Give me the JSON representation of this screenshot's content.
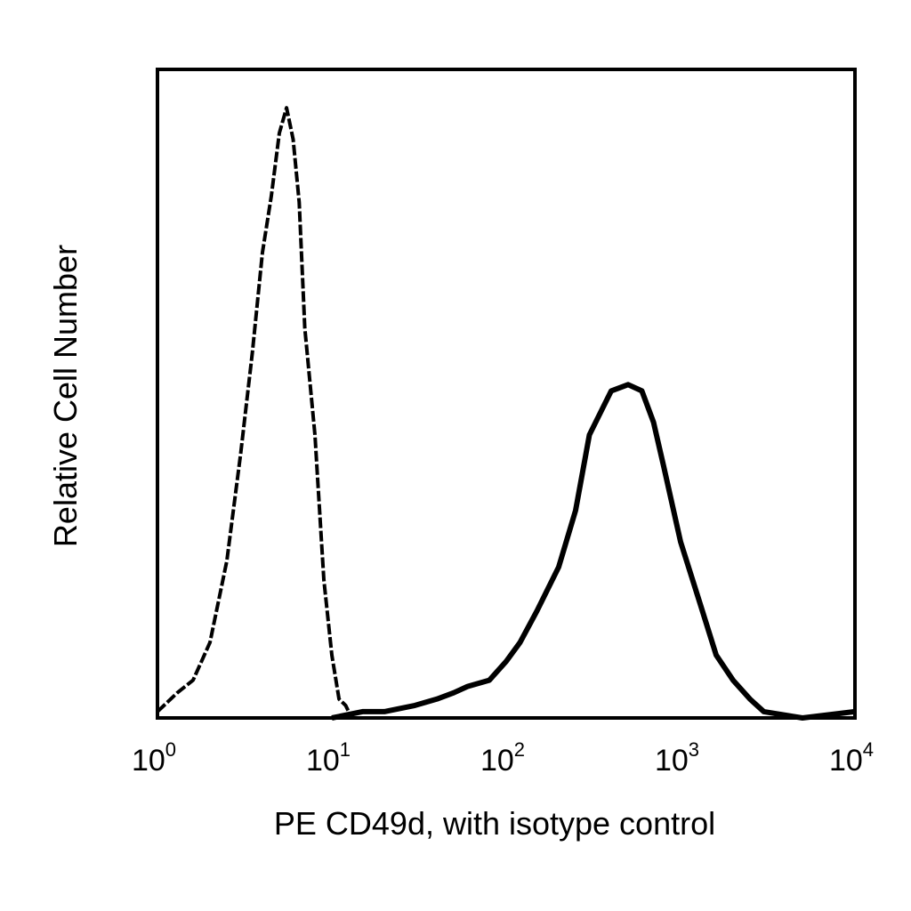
{
  "chart_data": {
    "type": "area",
    "title": "",
    "xlabel": "PE CD49d, with isotype control",
    "ylabel": "Relative Cell Number",
    "x_scale": "log",
    "xlim": [
      1,
      10000
    ],
    "ylim": [
      0,
      1
    ],
    "grid": false,
    "legend": "none",
    "x_ticks": [
      {
        "value": 1,
        "base": "10",
        "exp": "0"
      },
      {
        "value": 10,
        "base": "10",
        "exp": "1"
      },
      {
        "value": 100,
        "base": "10",
        "exp": "2"
      },
      {
        "value": 1000,
        "base": "10",
        "exp": "3"
      },
      {
        "value": 10000,
        "base": "10",
        "exp": "4"
      }
    ],
    "series": [
      {
        "style": "dashed",
        "x": [
          1.0,
          1.3,
          1.6,
          2.0,
          2.5,
          3.0,
          3.5,
          4.0,
          4.5,
          5.0,
          5.5,
          6.0,
          6.5,
          7.0,
          8.0,
          9.0,
          10.0,
          11.0,
          12.0,
          13.0,
          16.0,
          25.0,
          40.0,
          100.0,
          1000.0,
          10000.0
        ],
        "values": [
          0.01,
          0.04,
          0.06,
          0.12,
          0.25,
          0.42,
          0.58,
          0.74,
          0.83,
          0.93,
          0.97,
          0.92,
          0.82,
          0.62,
          0.45,
          0.22,
          0.1,
          0.03,
          0.02,
          0.0,
          0.0,
          0.0,
          0.0,
          0.0,
          0.0,
          0.0
        ]
      },
      {
        "style": "solid",
        "x": [
          10.0,
          15.0,
          20.0,
          30.0,
          40.0,
          50.0,
          60.0,
          80.0,
          100.0,
          120.0,
          150.0,
          200.0,
          250.0,
          300.0,
          400.0,
          500.0,
          600.0,
          700.0,
          800.0,
          1000.0,
          1300.0,
          1600.0,
          2000.0,
          2500.0,
          3000.0,
          5000.0,
          10000.0
        ],
        "values": [
          0.0,
          0.01,
          0.01,
          0.02,
          0.03,
          0.04,
          0.05,
          0.06,
          0.09,
          0.12,
          0.17,
          0.24,
          0.33,
          0.45,
          0.52,
          0.53,
          0.52,
          0.47,
          0.4,
          0.28,
          0.18,
          0.1,
          0.06,
          0.03,
          0.01,
          0.0,
          0.01
        ]
      }
    ]
  }
}
